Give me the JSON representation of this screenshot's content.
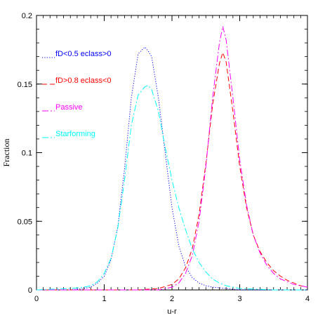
{
  "chart_data": {
    "type": "line",
    "title": "",
    "xlabel": "u-r",
    "ylabel": "Fraction",
    "xlim": [
      0,
      4
    ],
    "ylim": [
      0,
      0.2
    ],
    "grid": false,
    "legend_position": "top-left",
    "x_ticks": [
      "0",
      "1",
      "2",
      "3",
      "4"
    ],
    "y_ticks": [
      "0",
      "0.05",
      "0.1",
      "0.15",
      "0.2"
    ],
    "x_tick_values": [
      0,
      1,
      2,
      3,
      4
    ],
    "y_tick_values": [
      0,
      0.05,
      0.1,
      0.15,
      0.2
    ],
    "series": [
      {
        "name": "fD<0.5 eclass>0",
        "color": "#0000ff",
        "style": "dotted",
        "x": [
          0.0,
          0.5,
          0.7,
          0.8,
          0.9,
          1.0,
          1.1,
          1.2,
          1.3,
          1.4,
          1.5,
          1.6,
          1.65,
          1.7,
          1.8,
          1.9,
          2.0,
          2.1,
          2.2,
          2.3,
          2.4,
          2.5,
          2.6,
          2.8,
          3.0,
          3.5,
          4.0
        ],
        "y": [
          0.0,
          0.0,
          0.001,
          0.002,
          0.005,
          0.01,
          0.022,
          0.046,
          0.088,
          0.14,
          0.172,
          0.177,
          0.174,
          0.17,
          0.14,
          0.1,
          0.06,
          0.032,
          0.017,
          0.009,
          0.005,
          0.003,
          0.002,
          0.001,
          0.0,
          0.0,
          0.0
        ]
      },
      {
        "name": "fD>0.8 eclass<0",
        "color": "#ff0000",
        "style": "dashed",
        "x": [
          0.0,
          1.0,
          1.5,
          1.8,
          2.0,
          2.1,
          2.2,
          2.3,
          2.4,
          2.5,
          2.6,
          2.7,
          2.75,
          2.8,
          2.9,
          3.0,
          3.1,
          3.2,
          3.3,
          3.4,
          3.5,
          3.6,
          3.7,
          3.8,
          3.9,
          4.0
        ],
        "y": [
          0.0,
          0.0,
          0.0,
          0.001,
          0.004,
          0.008,
          0.016,
          0.03,
          0.055,
          0.092,
          0.135,
          0.165,
          0.173,
          0.166,
          0.13,
          0.09,
          0.06,
          0.04,
          0.028,
          0.02,
          0.014,
          0.01,
          0.007,
          0.005,
          0.003,
          0.002
        ]
      },
      {
        "name": "Passive",
        "color": "#ff00ff",
        "style": "dash-dot",
        "x": [
          0.0,
          1.0,
          1.5,
          1.8,
          2.0,
          2.1,
          2.2,
          2.3,
          2.4,
          2.5,
          2.6,
          2.7,
          2.75,
          2.8,
          2.9,
          3.0,
          3.1,
          3.2,
          3.3,
          3.4,
          3.5,
          3.6,
          3.7,
          3.8,
          3.9,
          4.0
        ],
        "y": [
          0.0,
          0.0,
          0.0,
          0.0,
          0.002,
          0.005,
          0.012,
          0.025,
          0.05,
          0.09,
          0.14,
          0.18,
          0.192,
          0.182,
          0.14,
          0.095,
          0.062,
          0.04,
          0.027,
          0.018,
          0.012,
          0.008,
          0.006,
          0.004,
          0.003,
          0.002
        ]
      },
      {
        "name": "Starforming",
        "color": "#00ffff",
        "style": "dash-dot",
        "x": [
          0.0,
          0.5,
          0.7,
          0.8,
          0.9,
          1.0,
          1.1,
          1.2,
          1.3,
          1.4,
          1.5,
          1.6,
          1.65,
          1.7,
          1.8,
          1.9,
          2.0,
          2.1,
          2.2,
          2.3,
          2.4,
          2.5,
          2.6,
          2.7,
          2.8,
          3.0,
          3.5,
          4.0
        ],
        "y": [
          0.0,
          0.001,
          0.002,
          0.003,
          0.006,
          0.012,
          0.023,
          0.045,
          0.08,
          0.12,
          0.142,
          0.148,
          0.149,
          0.146,
          0.13,
          0.104,
          0.08,
          0.06,
          0.044,
          0.03,
          0.02,
          0.013,
          0.008,
          0.005,
          0.003,
          0.001,
          0.0,
          0.0
        ]
      }
    ]
  }
}
